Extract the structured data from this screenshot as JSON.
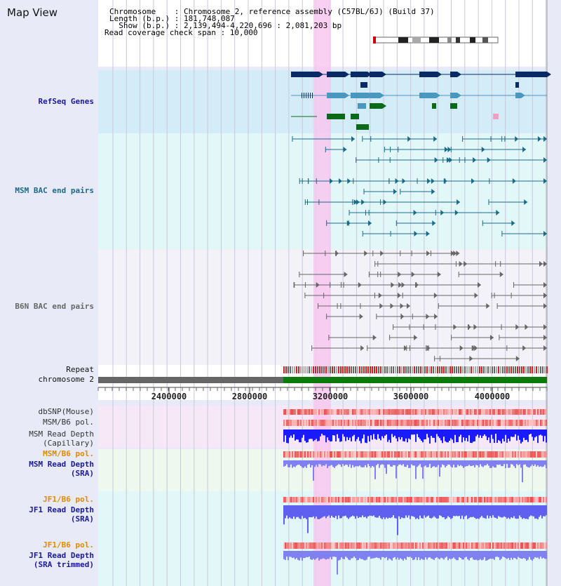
{
  "title": "Map View",
  "info": {
    "chromosome_label": "Chromosome    : Chromosome 2, reference assembly (C57BL/6J) (Build 37)",
    "length_label": "Length (b.p.) : 181,748,087",
    "show_label": "  Show (b.p.) : 2,139,494-4,220,696 : 2,081,203 bp",
    "coverage_label": "Read coverage check span : 10,000"
  },
  "tracks": {
    "refseq": "RefSeq Genes",
    "msm_bac": "MSM BAC end pairs",
    "b6n_bac": "B6N BAC end pairs",
    "repeat": "Repeat",
    "chromosome": "chromosome 2",
    "dbsnp": "dbSNP(Mouse)",
    "msm_b6_pol": "MSM/B6 pol.",
    "msm_depth_cap_1": "MSM Read Depth",
    "msm_depth_cap_2": "(Capillary)",
    "msm_b6_pol2": "MSM/B6 pol.",
    "msm_depth_sra_1": "MSM Read Depth",
    "msm_depth_sra_2": "(SRA)",
    "jf1_pol": "JF1/B6 pol.",
    "jf1_depth_1": "JF1 Read Depth",
    "jf1_depth_2": "(SRA)",
    "jf1_pol2": "JF1/B6 pol.",
    "jf1_trim_1": "JF1 Read Depth",
    "jf1_trim_2": "(SRA trimmed)"
  },
  "axis": {
    "ticks": [
      "2400000",
      "2800000",
      "3200000",
      "3600000",
      "4000000"
    ]
  },
  "colors": {
    "refseq_dark": "#0a2a66",
    "refseq_light": "#4a98c0",
    "refseq_green": "#0a6a1a",
    "msm_bac": "#1a6a8a",
    "b6n_bac": "#666666",
    "highlight": "#f8c8f0",
    "label_blue": "#1a1a99",
    "label_orange": "#e08a00",
    "label_teal": "#1a6a8a"
  }
}
